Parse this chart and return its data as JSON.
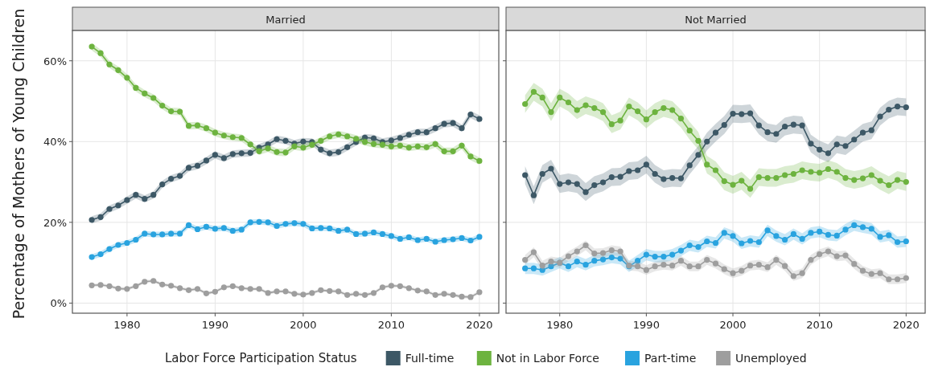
{
  "chart_data": [
    {
      "type": "line",
      "title": "Married",
      "ylabel": "Percentage of Mothers of Young Children",
      "legend_title": "Labor Force Participation Status",
      "legend": "bottom",
      "grid": true,
      "marker": "circle",
      "x": [
        1976,
        1977,
        1978,
        1979,
        1980,
        1981,
        1982,
        1983,
        1984,
        1985,
        1986,
        1987,
        1988,
        1989,
        1990,
        1991,
        1992,
        1993,
        1994,
        1995,
        1996,
        1997,
        1998,
        1999,
        2000,
        2001,
        2002,
        2003,
        2004,
        2005,
        2006,
        2007,
        2008,
        2009,
        2010,
        2011,
        2012,
        2013,
        2014,
        2015,
        2016,
        2017,
        2018,
        2019,
        2020
      ],
      "xlim": [
        1973.8,
        2022.2
      ],
      "xticks": [
        1980,
        1990,
        2000,
        2010,
        2020
      ],
      "ylim": [
        -2.5,
        67.5
      ],
      "yticks": [
        {
          "value": 0,
          "label": "0%"
        },
        {
          "value": 20,
          "label": "20%"
        },
        {
          "value": 40,
          "label": "40%"
        },
        {
          "value": 60,
          "label": "60%"
        }
      ],
      "series": [
        {
          "name": "Full-time",
          "color": "#3d5866",
          "values": [
            20.6,
            21.3,
            23.3,
            24.2,
            25.5,
            26.8,
            25.8,
            26.8,
            29.4,
            30.8,
            31.5,
            33.5,
            34.0,
            35.3,
            36.7,
            35.9,
            36.9,
            37.1,
            37.2,
            38.5,
            39.3,
            40.6,
            40.2,
            39.5,
            40.0,
            39.9,
            38.0,
            37.1,
            37.4,
            38.6,
            39.9,
            41.0,
            40.8,
            39.9,
            40.3,
            40.9,
            41.7,
            42.3,
            42.3,
            43.3,
            44.4,
            44.6,
            43.3,
            46.7,
            45.6
          ],
          "lower": [
            19.7,
            20.4,
            22.4,
            23.3,
            24.6,
            25.9,
            24.9,
            25.9,
            28.5,
            29.9,
            30.6,
            32.6,
            33.1,
            34.4,
            35.8,
            35.0,
            36.0,
            36.2,
            36.3,
            37.6,
            38.4,
            39.7,
            39.3,
            38.6,
            39.1,
            39.0,
            37.1,
            36.2,
            36.5,
            37.7,
            39.0,
            40.1,
            39.9,
            39.0,
            39.4,
            40.0,
            40.8,
            41.4,
            41.4,
            42.4,
            43.5,
            43.7,
            42.4,
            45.8,
            44.7
          ],
          "upper": [
            21.5,
            22.2,
            24.2,
            25.1,
            26.4,
            27.7,
            26.7,
            27.7,
            30.3,
            31.7,
            32.4,
            34.4,
            34.9,
            36.2,
            37.6,
            36.8,
            37.8,
            38.0,
            38.1,
            39.4,
            40.2,
            41.5,
            41.1,
            40.4,
            40.9,
            40.8,
            38.9,
            38.0,
            38.3,
            39.5,
            40.8,
            41.9,
            41.7,
            40.8,
            41.2,
            41.8,
            42.6,
            43.2,
            43.2,
            44.2,
            45.3,
            45.5,
            44.2,
            47.6,
            46.5
          ]
        },
        {
          "name": "Not in Labor Force",
          "color": "#6db33f",
          "values": [
            63.5,
            61.9,
            59.1,
            57.7,
            55.8,
            53.3,
            51.9,
            50.8,
            48.9,
            47.5,
            47.4,
            43.9,
            44.0,
            43.3,
            42.2,
            41.5,
            41.1,
            40.9,
            39.3,
            37.6,
            38.3,
            37.4,
            37.3,
            38.8,
            38.5,
            39.2,
            40.2,
            41.3,
            41.8,
            41.3,
            40.7,
            39.9,
            39.4,
            39.2,
            38.8,
            39.0,
            38.5,
            38.8,
            38.6,
            39.4,
            37.6,
            37.6,
            39.0,
            36.3,
            35.2
          ],
          "lower": [
            62.6,
            61.0,
            58.2,
            56.8,
            54.9,
            52.4,
            51.0,
            49.9,
            48.0,
            46.6,
            46.5,
            43.0,
            43.1,
            42.4,
            41.3,
            40.6,
            40.2,
            40.0,
            38.4,
            36.7,
            37.4,
            36.5,
            36.4,
            37.9,
            37.6,
            38.3,
            39.3,
            40.4,
            40.9,
            40.4,
            39.8,
            39.0,
            38.5,
            38.3,
            37.9,
            38.1,
            37.6,
            37.9,
            37.7,
            38.5,
            36.7,
            36.7,
            38.1,
            35.4,
            34.3
          ],
          "upper": [
            64.4,
            62.8,
            60.0,
            58.6,
            56.7,
            54.2,
            52.8,
            51.7,
            49.8,
            48.4,
            48.3,
            44.8,
            44.9,
            44.2,
            43.1,
            42.4,
            42.0,
            41.8,
            40.2,
            38.5,
            39.2,
            38.3,
            38.2,
            39.7,
            39.4,
            40.1,
            41.1,
            42.2,
            42.7,
            42.2,
            41.6,
            40.8,
            40.3,
            40.1,
            39.7,
            39.9,
            39.4,
            39.7,
            39.5,
            40.3,
            38.5,
            38.5,
            39.9,
            37.2,
            36.1
          ]
        },
        {
          "name": "Part-time",
          "color": "#29a3df",
          "values": [
            11.4,
            12.1,
            13.4,
            14.4,
            14.9,
            15.7,
            17.2,
            17.0,
            17.0,
            17.2,
            17.2,
            19.3,
            18.3,
            18.9,
            18.4,
            18.6,
            17.9,
            18.2,
            20.0,
            20.1,
            20.0,
            19.1,
            19.6,
            19.8,
            19.6,
            18.5,
            18.6,
            18.5,
            17.9,
            18.2,
            17.1,
            17.2,
            17.5,
            17.1,
            16.6,
            15.9,
            16.3,
            15.6,
            15.9,
            15.2,
            15.6,
            15.8,
            16.1,
            15.5,
            16.4
          ],
          "lower": [
            10.7,
            11.4,
            12.7,
            13.7,
            14.2,
            15.0,
            16.5,
            16.3,
            16.3,
            16.5,
            16.5,
            18.6,
            17.6,
            18.2,
            17.7,
            17.9,
            17.2,
            17.5,
            19.3,
            19.4,
            19.3,
            18.4,
            18.9,
            19.1,
            18.9,
            17.8,
            17.9,
            17.8,
            17.2,
            17.5,
            16.4,
            16.5,
            16.8,
            16.4,
            15.9,
            15.2,
            15.6,
            14.9,
            15.2,
            14.5,
            14.9,
            15.1,
            15.4,
            14.8,
            15.7
          ],
          "upper": [
            12.1,
            12.8,
            14.1,
            15.1,
            15.6,
            16.4,
            17.9,
            17.7,
            17.7,
            17.9,
            17.9,
            20.0,
            19.0,
            19.6,
            19.1,
            19.3,
            18.6,
            18.9,
            20.7,
            20.8,
            20.7,
            19.8,
            20.3,
            20.5,
            20.3,
            19.2,
            19.3,
            19.2,
            18.6,
            18.9,
            17.8,
            17.9,
            18.2,
            17.8,
            17.3,
            16.6,
            17.0,
            16.3,
            16.6,
            15.9,
            16.3,
            16.5,
            16.8,
            16.2,
            17.1
          ]
        },
        {
          "name": "Unemployed",
          "color": "#9e9e9e",
          "values": [
            4.4,
            4.5,
            4.2,
            3.6,
            3.5,
            4.2,
            5.3,
            5.5,
            4.6,
            4.3,
            3.7,
            3.2,
            3.5,
            2.4,
            2.8,
            3.9,
            4.2,
            3.7,
            3.5,
            3.5,
            2.5,
            2.9,
            2.9,
            2.3,
            2.1,
            2.5,
            3.2,
            3.0,
            2.9,
            2.0,
            2.3,
            2.0,
            2.5,
            3.9,
            4.3,
            4.2,
            3.7,
            3.1,
            2.9,
            2.0,
            2.3,
            2.0,
            1.6,
            1.5,
            2.7
          ],
          "lower": [
            4.0,
            4.1,
            3.8,
            3.2,
            3.1,
            3.8,
            4.9,
            5.1,
            4.2,
            3.9,
            3.3,
            2.8,
            3.1,
            2.0,
            2.4,
            3.5,
            3.8,
            3.3,
            3.1,
            3.1,
            2.1,
            2.5,
            2.5,
            1.9,
            1.7,
            2.1,
            2.8,
            2.6,
            2.5,
            1.6,
            1.9,
            1.6,
            2.1,
            3.5,
            3.9,
            3.8,
            3.3,
            2.7,
            2.5,
            1.6,
            1.9,
            1.6,
            1.2,
            1.1,
            2.3
          ],
          "upper": [
            4.8,
            4.9,
            4.6,
            4.0,
            3.9,
            4.6,
            5.7,
            5.9,
            5.0,
            4.7,
            4.1,
            3.6,
            3.9,
            2.8,
            3.2,
            4.3,
            4.6,
            4.1,
            3.9,
            3.9,
            2.9,
            3.3,
            3.3,
            2.7,
            2.5,
            2.9,
            3.6,
            3.4,
            3.3,
            2.4,
            2.7,
            2.4,
            2.9,
            4.3,
            4.7,
            4.6,
            4.1,
            3.5,
            3.3,
            2.4,
            2.7,
            2.4,
            2.0,
            1.9,
            3.1
          ]
        }
      ]
    },
    {
      "type": "line",
      "title": "Not Married",
      "grid": true,
      "marker": "circle",
      "tick_labels": "x",
      "x": [
        1976,
        1977,
        1978,
        1979,
        1980,
        1981,
        1982,
        1983,
        1984,
        1985,
        1986,
        1987,
        1988,
        1989,
        1990,
        1991,
        1992,
        1993,
        1994,
        1995,
        1996,
        1997,
        1998,
        1999,
        2000,
        2001,
        2002,
        2003,
        2004,
        2005,
        2006,
        2007,
        2008,
        2009,
        2010,
        2011,
        2012,
        2013,
        2014,
        2015,
        2016,
        2017,
        2018,
        2019,
        2020
      ],
      "xlim": [
        1973.8,
        2022.2
      ],
      "xticks": [
        1980,
        1990,
        2000,
        2010,
        2020
      ],
      "ylim": [
        -2.5,
        67.5
      ],
      "yticks": [
        {
          "value": 0,
          "label": null
        },
        {
          "value": 20,
          "label": null
        },
        {
          "value": 40,
          "label": null
        },
        {
          "value": 60,
          "label": null
        }
      ],
      "series": [
        {
          "color": "#3d5866",
          "values": [
            31.7,
            26.7,
            32.0,
            33.3,
            29.5,
            29.9,
            29.5,
            27.5,
            29.2,
            29.9,
            31.2,
            31.3,
            32.7,
            32.9,
            34.3,
            32.0,
            30.7,
            31.0,
            30.9,
            34.1,
            36.7,
            40.0,
            42.2,
            44.1,
            46.9,
            46.8,
            47.0,
            44.0,
            42.3,
            41.9,
            43.7,
            44.2,
            44.0,
            39.5,
            38.0,
            37.1,
            39.3,
            38.9,
            40.5,
            42.2,
            42.8,
            46.2,
            47.9,
            48.7,
            48.5
          ],
          "lower": [
            29.5,
            24.5,
            29.8,
            31.1,
            27.3,
            27.7,
            27.3,
            25.3,
            27.0,
            27.7,
            29.0,
            29.1,
            30.5,
            30.7,
            32.1,
            29.8,
            28.5,
            28.8,
            28.7,
            31.9,
            34.5,
            37.8,
            40.0,
            41.9,
            44.7,
            44.6,
            44.8,
            41.8,
            40.1,
            39.7,
            41.5,
            42.0,
            41.8,
            37.3,
            35.8,
            34.9,
            37.1,
            36.7,
            38.3,
            40.0,
            40.6,
            44.0,
            45.7,
            46.5,
            46.3
          ],
          "upper": [
            33.9,
            28.9,
            34.2,
            35.5,
            31.7,
            32.1,
            31.7,
            29.7,
            31.4,
            32.1,
            33.4,
            33.5,
            34.9,
            35.1,
            36.5,
            34.2,
            32.9,
            33.2,
            33.1,
            36.3,
            38.9,
            42.2,
            44.4,
            46.3,
            49.1,
            49.0,
            49.2,
            46.2,
            44.5,
            44.1,
            45.9,
            46.4,
            46.2,
            41.7,
            40.2,
            39.3,
            41.5,
            41.1,
            42.7,
            44.4,
            45.0,
            48.4,
            50.1,
            50.9,
            50.7
          ]
        },
        {
          "color": "#6db33f",
          "values": [
            49.3,
            52.3,
            50.9,
            47.3,
            50.9,
            49.7,
            47.8,
            49.0,
            48.3,
            47.3,
            44.3,
            45.2,
            48.7,
            47.5,
            45.5,
            47.3,
            48.3,
            47.8,
            45.7,
            42.7,
            40.2,
            34.3,
            32.9,
            30.2,
            29.3,
            30.3,
            28.3,
            31.2,
            31.0,
            31.0,
            31.7,
            32.0,
            32.9,
            32.5,
            32.3,
            33.2,
            32.5,
            31.0,
            30.5,
            30.9,
            31.7,
            30.3,
            29.2,
            30.5,
            30.0
          ],
          "lower": [
            47.1,
            50.1,
            48.7,
            45.1,
            48.7,
            47.5,
            45.6,
            46.8,
            46.1,
            45.1,
            42.1,
            43.0,
            46.5,
            45.3,
            43.3,
            45.1,
            46.1,
            45.6,
            43.5,
            40.5,
            38.0,
            32.1,
            30.7,
            28.0,
            27.1,
            28.1,
            26.1,
            29.0,
            28.8,
            28.8,
            29.5,
            29.8,
            30.7,
            30.3,
            30.1,
            31.0,
            30.3,
            28.8,
            28.3,
            28.7,
            29.5,
            28.1,
            27.0,
            28.3,
            27.8
          ],
          "upper": [
            51.5,
            54.5,
            53.1,
            49.5,
            53.1,
            51.9,
            50.0,
            51.2,
            50.5,
            49.5,
            46.5,
            47.4,
            50.9,
            49.7,
            47.7,
            49.5,
            50.5,
            50.0,
            47.9,
            44.9,
            42.4,
            36.5,
            35.1,
            32.4,
            31.5,
            32.5,
            30.5,
            33.4,
            33.2,
            33.2,
            33.9,
            34.2,
            35.1,
            34.7,
            34.5,
            35.4,
            34.7,
            33.2,
            32.7,
            33.1,
            33.9,
            32.5,
            31.4,
            32.7,
            32.2
          ]
        },
        {
          "color": "#29a3df",
          "values": [
            8.6,
            8.6,
            8.2,
            9.1,
            10.0,
            9.1,
            10.3,
            9.5,
            10.5,
            10.8,
            11.3,
            11.0,
            9.1,
            10.5,
            12.0,
            11.5,
            11.5,
            12.0,
            13.0,
            14.3,
            13.9,
            15.3,
            14.9,
            17.4,
            16.6,
            14.8,
            15.4,
            15.1,
            18.0,
            16.6,
            15.7,
            17.1,
            15.9,
            17.4,
            17.7,
            16.9,
            16.7,
            18.2,
            19.3,
            18.8,
            18.4,
            16.4,
            16.8,
            15.1,
            15.3
          ],
          "lower": [
            7.2,
            7.2,
            6.8,
            7.7,
            8.6,
            7.7,
            8.9,
            8.1,
            9.1,
            9.4,
            9.9,
            9.6,
            7.7,
            9.1,
            10.6,
            10.1,
            10.1,
            10.6,
            11.6,
            12.9,
            12.5,
            13.9,
            13.5,
            16.0,
            15.2,
            13.4,
            14.0,
            13.7,
            16.6,
            15.2,
            14.3,
            15.7,
            14.5,
            16.0,
            16.3,
            15.5,
            15.3,
            16.8,
            17.9,
            17.4,
            17.0,
            15.0,
            15.4,
            13.7,
            13.9
          ],
          "upper": [
            10.0,
            10.0,
            9.6,
            10.5,
            11.4,
            10.5,
            11.7,
            10.9,
            11.9,
            12.2,
            12.7,
            12.4,
            10.5,
            11.9,
            13.4,
            12.9,
            12.9,
            13.4,
            14.4,
            15.7,
            15.3,
            16.7,
            16.3,
            18.8,
            18.0,
            16.2,
            16.8,
            16.5,
            19.4,
            18.0,
            17.1,
            18.5,
            17.3,
            18.8,
            19.1,
            18.3,
            18.1,
            19.6,
            20.7,
            20.2,
            19.8,
            17.8,
            18.2,
            16.5,
            16.7
          ]
        },
        {
          "color": "#9e9e9e",
          "values": [
            10.7,
            12.6,
            9.3,
            10.3,
            10.0,
            11.6,
            12.8,
            14.3,
            12.3,
            12.4,
            13.1,
            12.8,
            9.3,
            9.1,
            8.2,
            9.1,
            9.5,
            9.3,
            10.5,
            9.1,
            9.1,
            10.7,
            9.8,
            8.4,
            7.4,
            8.0,
            9.3,
            9.5,
            8.9,
            10.7,
            9.2,
            6.7,
            7.4,
            10.7,
            12.1,
            12.8,
            11.6,
            11.8,
            9.7,
            8.0,
            7.2,
            7.4,
            5.9,
            5.9,
            6.2
          ],
          "lower": [
            9.5,
            11.4,
            8.1,
            9.1,
            8.8,
            10.4,
            11.6,
            13.1,
            11.1,
            11.2,
            11.9,
            11.6,
            8.1,
            7.9,
            7.0,
            7.9,
            8.3,
            8.1,
            9.3,
            7.9,
            7.9,
            9.5,
            8.6,
            7.2,
            6.2,
            6.8,
            8.1,
            8.3,
            7.7,
            9.5,
            8.0,
            5.5,
            6.2,
            9.5,
            10.9,
            11.6,
            10.4,
            10.6,
            8.5,
            6.8,
            6.0,
            6.2,
            4.7,
            4.7,
            5.0
          ],
          "upper": [
            11.9,
            13.8,
            10.5,
            11.5,
            11.2,
            12.8,
            14.0,
            15.5,
            13.5,
            13.6,
            14.3,
            14.0,
            10.5,
            10.3,
            9.4,
            10.3,
            10.7,
            10.5,
            11.7,
            10.3,
            10.3,
            11.9,
            11.0,
            9.6,
            8.6,
            9.2,
            10.5,
            10.7,
            10.1,
            11.9,
            10.4,
            7.9,
            8.6,
            11.9,
            13.3,
            14.0,
            12.8,
            13.0,
            10.9,
            9.2,
            8.4,
            8.6,
            7.1,
            7.1,
            7.4
          ]
        }
      ]
    }
  ]
}
